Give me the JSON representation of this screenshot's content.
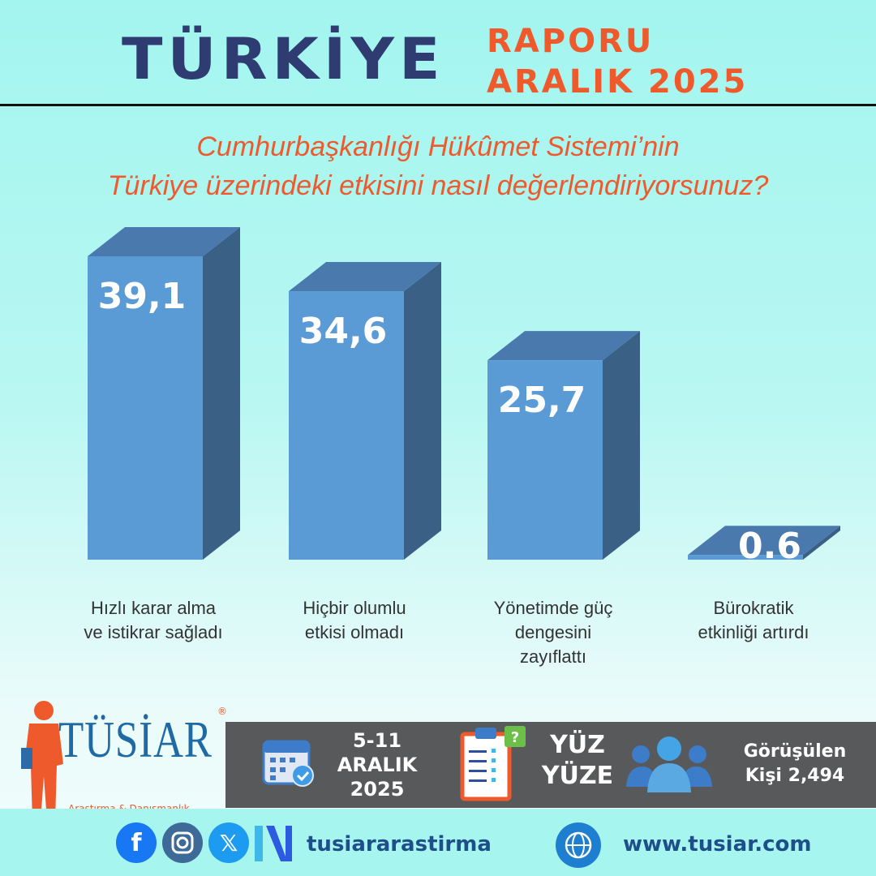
{
  "header": {
    "title": "TÜRKİYE",
    "subtitle_line1": "RAPORU",
    "subtitle_line2": "ARALIK 2025"
  },
  "question": {
    "line1": "Cumhurbaşkanlığı Hükûmet Sistemi’nin",
    "line2": "Türkiye üzerindeki etkisini nasıl değerlendiriyorsunuz?"
  },
  "chart_data": {
    "type": "bar",
    "style": "3d",
    "categories": [
      [
        "Hızlı karar alma",
        "ve istikrar sağladı"
      ],
      [
        "Hiçbir olumlu",
        "etkisi olmadı"
      ],
      [
        "Yönetimde güç",
        "dengesini",
        "zayıflattı"
      ],
      [
        "Bürokratik",
        "etkinliği artırdı"
      ]
    ],
    "values": [
      39.1,
      34.6,
      25.7,
      0.6
    ],
    "value_labels": [
      "39,1",
      "34,6",
      "25,7",
      "0.6"
    ],
    "ylim": [
      0,
      40
    ],
    "grid": false,
    "colors": {
      "front": "#5b9bd5",
      "top": "#4a79ad",
      "side": "#3b6085"
    }
  },
  "logo": {
    "name": "TÜSİAR",
    "tagline": "Araştırma & Danışmanlık",
    "mark": "®"
  },
  "info_band": {
    "date_line1": "5-11",
    "date_line2": "ARALIK",
    "date_line3": "2025",
    "method_line1": "YÜZ",
    "method_line2": "YÜZE",
    "sample_line1": "Görüşülen",
    "sample_line2": "Kişi 2,494"
  },
  "footer": {
    "social_handle": "tusiararastirma",
    "website": "www.tusiar.com",
    "icons": [
      "facebook-icon",
      "instagram-icon",
      "x-icon",
      "nsosyal-icon",
      "globe-icon"
    ]
  }
}
